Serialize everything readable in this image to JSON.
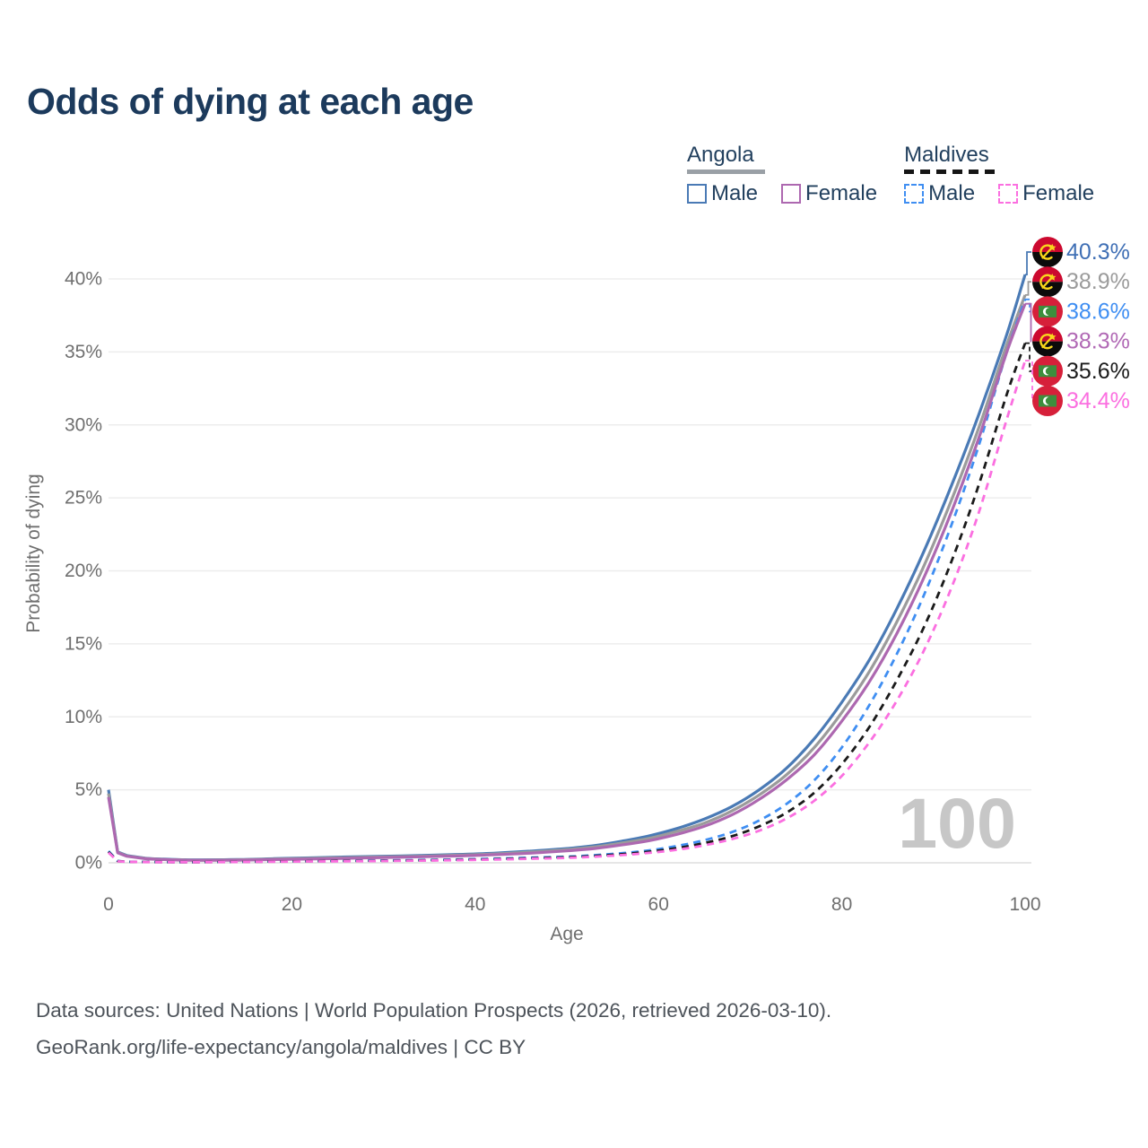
{
  "title": "Odds of dying at each age",
  "age_indicator": "100",
  "legend": {
    "groups": [
      {
        "country": "Angola",
        "line_style": "solid",
        "underline_color": "#9aa0a6",
        "items": [
          {
            "label": "Male",
            "color": "#4a7ab5"
          },
          {
            "label": "Female",
            "color": "#ad68b0"
          }
        ]
      },
      {
        "country": "Maldives",
        "line_style": "dashed",
        "underline_color": "#151515",
        "items": [
          {
            "label": "Male",
            "color": "#3f8ef2"
          },
          {
            "label": "Female",
            "color": "#fb6fe0"
          }
        ]
      }
    ]
  },
  "footer": {
    "line1": "Data sources: United Nations | World Population Prospects (2026, retrieved 2026-03-10).",
    "line2": "GeoRank.org/life-expectancy/angola/maldives | CC BY"
  },
  "colors": {
    "title_text": "#1c3a5c",
    "legend_text": "#22405e",
    "axis_text": "#6f6f6f",
    "gridline": "#ededed",
    "zero_line": "#dedede",
    "watermark": "#c7c7c7",
    "footer_text": "#4d535a",
    "angola_flag": {
      "red": "#cc092f",
      "black": "#0b0b0b",
      "yellow": "#f9d71c"
    },
    "maldives_flag": {
      "red": "#d6203a",
      "green": "#3d8e3d",
      "white": "#ffffff"
    }
  },
  "chart_data": {
    "type": "line",
    "title": "Odds of dying at each age",
    "xlabel": "Age",
    "ylabel": "Probability of dying",
    "xlim": [
      0,
      100
    ],
    "ylim": [
      0,
      40
    ],
    "x_ticks": [
      0,
      20,
      40,
      60,
      80,
      100
    ],
    "y_ticks": [
      "0%",
      "5%",
      "10%",
      "15%",
      "20%",
      "25%",
      "30%",
      "35%",
      "40%"
    ],
    "y_tick_values": [
      0,
      5,
      10,
      15,
      20,
      25,
      30,
      35,
      40
    ],
    "grid": "horizontal",
    "legend_position": "top-right",
    "unit": "percent",
    "series": [
      {
        "id": "angola-male",
        "country": "Angola",
        "sex": "male",
        "flag": "angola",
        "color": "#4a7ab5",
        "label_color": "#3f6fb5",
        "dash": "",
        "end_label": "40.3%",
        "end_value": 40.3,
        "points": [
          [
            0,
            5.0
          ],
          [
            1,
            0.75
          ],
          [
            2,
            0.5
          ],
          [
            4,
            0.32
          ],
          [
            6,
            0.25
          ],
          [
            8,
            0.21
          ],
          [
            10,
            0.2
          ],
          [
            14,
            0.22
          ],
          [
            18,
            0.28
          ],
          [
            22,
            0.34
          ],
          [
            26,
            0.4
          ],
          [
            30,
            0.45
          ],
          [
            34,
            0.5
          ],
          [
            38,
            0.57
          ],
          [
            42,
            0.66
          ],
          [
            46,
            0.8
          ],
          [
            50,
            0.98
          ],
          [
            53,
            1.18
          ],
          [
            56,
            1.48
          ],
          [
            59,
            1.85
          ],
          [
            62,
            2.35
          ],
          [
            65,
            3.0
          ],
          [
            68,
            3.85
          ],
          [
            71,
            5.0
          ],
          [
            74,
            6.5
          ],
          [
            77,
            8.5
          ],
          [
            80,
            11.0
          ],
          [
            83,
            13.9
          ],
          [
            86,
            17.4
          ],
          [
            89,
            21.4
          ],
          [
            92,
            25.9
          ],
          [
            95,
            30.8
          ],
          [
            98,
            36.2
          ],
          [
            100,
            40.3
          ]
        ]
      },
      {
        "id": "angola-all",
        "country": "Angola",
        "sex": "all",
        "flag": "angola",
        "color": "#9b9b9b",
        "label_color": "#9b9b9b",
        "dash": "",
        "end_label": "38.9%",
        "end_value": 38.9,
        "points": [
          [
            0,
            4.75
          ],
          [
            1,
            0.71
          ],
          [
            2,
            0.47
          ],
          [
            4,
            0.3
          ],
          [
            6,
            0.23
          ],
          [
            8,
            0.2
          ],
          [
            10,
            0.18
          ],
          [
            14,
            0.2
          ],
          [
            18,
            0.25
          ],
          [
            22,
            0.3
          ],
          [
            26,
            0.35
          ],
          [
            30,
            0.4
          ],
          [
            34,
            0.45
          ],
          [
            38,
            0.52
          ],
          [
            42,
            0.6
          ],
          [
            46,
            0.73
          ],
          [
            50,
            0.9
          ],
          [
            53,
            1.08
          ],
          [
            56,
            1.35
          ],
          [
            59,
            1.68
          ],
          [
            62,
            2.15
          ],
          [
            65,
            2.72
          ],
          [
            68,
            3.55
          ],
          [
            71,
            4.65
          ],
          [
            74,
            6.05
          ],
          [
            77,
            7.9
          ],
          [
            80,
            10.3
          ],
          [
            83,
            13.1
          ],
          [
            86,
            16.5
          ],
          [
            89,
            20.4
          ],
          [
            92,
            24.9
          ],
          [
            95,
            29.9
          ],
          [
            98,
            35.5
          ],
          [
            100,
            38.9
          ]
        ]
      },
      {
        "id": "maldives-male",
        "country": "Maldives",
        "sex": "male",
        "flag": "maldives",
        "color": "#3f8ef2",
        "label_color": "#3f8ef2",
        "dash": "8 6",
        "end_label": "38.6%",
        "end_value": 38.6,
        "points": [
          [
            0,
            0.8
          ],
          [
            1,
            0.12
          ],
          [
            2,
            0.08
          ],
          [
            4,
            0.06
          ],
          [
            6,
            0.05
          ],
          [
            8,
            0.05
          ],
          [
            10,
            0.05
          ],
          [
            14,
            0.07
          ],
          [
            18,
            0.1
          ],
          [
            22,
            0.12
          ],
          [
            26,
            0.14
          ],
          [
            30,
            0.16
          ],
          [
            34,
            0.19
          ],
          [
            38,
            0.23
          ],
          [
            42,
            0.28
          ],
          [
            46,
            0.35
          ],
          [
            50,
            0.42
          ],
          [
            53,
            0.52
          ],
          [
            56,
            0.66
          ],
          [
            59,
            0.85
          ],
          [
            62,
            1.15
          ],
          [
            65,
            1.55
          ],
          [
            68,
            2.1
          ],
          [
            71,
            2.9
          ],
          [
            74,
            4.05
          ],
          [
            77,
            5.65
          ],
          [
            80,
            7.9
          ],
          [
            83,
            10.8
          ],
          [
            86,
            14.3
          ],
          [
            89,
            18.4
          ],
          [
            92,
            23.2
          ],
          [
            95,
            28.7
          ],
          [
            98,
            35.0
          ],
          [
            100,
            38.6
          ]
        ]
      },
      {
        "id": "angola-female",
        "country": "Angola",
        "sex": "female",
        "flag": "angola",
        "color": "#ad68b0",
        "label_color": "#b169b5",
        "dash": "",
        "end_label": "38.3%",
        "end_value": 38.3,
        "points": [
          [
            0,
            4.5
          ],
          [
            1,
            0.68
          ],
          [
            2,
            0.45
          ],
          [
            4,
            0.28
          ],
          [
            6,
            0.22
          ],
          [
            8,
            0.18
          ],
          [
            10,
            0.17
          ],
          [
            14,
            0.18
          ],
          [
            18,
            0.22
          ],
          [
            22,
            0.26
          ],
          [
            26,
            0.31
          ],
          [
            30,
            0.36
          ],
          [
            34,
            0.41
          ],
          [
            38,
            0.47
          ],
          [
            42,
            0.55
          ],
          [
            46,
            0.66
          ],
          [
            50,
            0.82
          ],
          [
            53,
            0.98
          ],
          [
            56,
            1.22
          ],
          [
            59,
            1.52
          ],
          [
            62,
            1.95
          ],
          [
            65,
            2.5
          ],
          [
            68,
            3.28
          ],
          [
            71,
            4.35
          ],
          [
            74,
            5.7
          ],
          [
            77,
            7.4
          ],
          [
            80,
            9.7
          ],
          [
            83,
            12.4
          ],
          [
            86,
            15.7
          ],
          [
            89,
            19.6
          ],
          [
            92,
            24.1
          ],
          [
            95,
            29.2
          ],
          [
            98,
            35.0
          ],
          [
            100,
            38.3
          ]
        ]
      },
      {
        "id": "maldives-all",
        "country": "Maldives",
        "sex": "all",
        "flag": "maldives",
        "color": "#1a1a1a",
        "label_color": "#1a1a1a",
        "dash": "8 6",
        "end_label": "35.6%",
        "end_value": 35.6,
        "points": [
          [
            0,
            0.75
          ],
          [
            1,
            0.11
          ],
          [
            2,
            0.075
          ],
          [
            4,
            0.055
          ],
          [
            6,
            0.047
          ],
          [
            8,
            0.045
          ],
          [
            10,
            0.046
          ],
          [
            14,
            0.062
          ],
          [
            18,
            0.088
          ],
          [
            22,
            0.105
          ],
          [
            26,
            0.12
          ],
          [
            30,
            0.14
          ],
          [
            34,
            0.165
          ],
          [
            38,
            0.2
          ],
          [
            42,
            0.245
          ],
          [
            46,
            0.31
          ],
          [
            50,
            0.38
          ],
          [
            53,
            0.47
          ],
          [
            56,
            0.59
          ],
          [
            59,
            0.76
          ],
          [
            62,
            1.0
          ],
          [
            65,
            1.35
          ],
          [
            68,
            1.82
          ],
          [
            71,
            2.5
          ],
          [
            74,
            3.45
          ],
          [
            77,
            4.8
          ],
          [
            80,
            6.75
          ],
          [
            83,
            9.3
          ],
          [
            86,
            12.5
          ],
          [
            89,
            16.2
          ],
          [
            92,
            20.7
          ],
          [
            95,
            26.0
          ],
          [
            98,
            32.1
          ],
          [
            100,
            35.6
          ]
        ]
      },
      {
        "id": "maldives-female",
        "country": "Maldives",
        "sex": "female",
        "flag": "maldives",
        "color": "#fb6fe0",
        "label_color": "#fb6fe0",
        "dash": "8 6",
        "end_label": "34.4%",
        "end_value": 34.4,
        "points": [
          [
            0,
            0.7
          ],
          [
            1,
            0.1
          ],
          [
            2,
            0.07
          ],
          [
            4,
            0.05
          ],
          [
            6,
            0.042
          ],
          [
            8,
            0.04
          ],
          [
            10,
            0.042
          ],
          [
            14,
            0.055
          ],
          [
            18,
            0.075
          ],
          [
            22,
            0.09
          ],
          [
            26,
            0.105
          ],
          [
            30,
            0.125
          ],
          [
            34,
            0.148
          ],
          [
            38,
            0.18
          ],
          [
            42,
            0.22
          ],
          [
            46,
            0.275
          ],
          [
            50,
            0.34
          ],
          [
            53,
            0.42
          ],
          [
            56,
            0.53
          ],
          [
            59,
            0.68
          ],
          [
            62,
            0.89
          ],
          [
            65,
            1.2
          ],
          [
            68,
            1.62
          ],
          [
            71,
            2.2
          ],
          [
            74,
            3.05
          ],
          [
            77,
            4.25
          ],
          [
            80,
            5.95
          ],
          [
            83,
            8.25
          ],
          [
            86,
            11.1
          ],
          [
            89,
            14.6
          ],
          [
            92,
            18.9
          ],
          [
            95,
            24.1
          ],
          [
            98,
            30.4
          ],
          [
            100,
            34.4
          ]
        ]
      }
    ]
  }
}
